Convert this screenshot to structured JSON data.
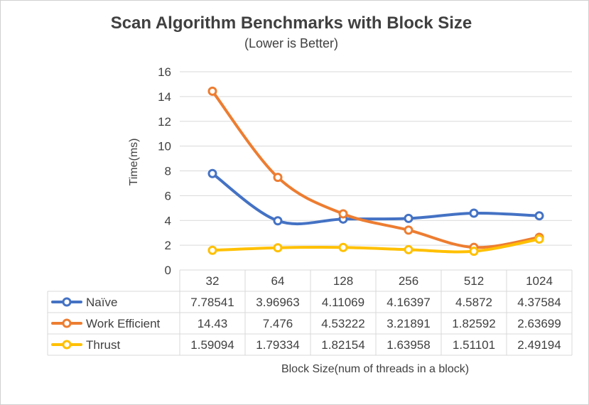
{
  "chart_data": {
    "type": "line",
    "title": "Scan Algorithm Benchmarks with Block Size",
    "subtitle": "(Lower is Better)",
    "ylabel": "Time(ms)",
    "xlabel": "Block Size(num of threads in a block)",
    "ylim": [
      0,
      16
    ],
    "yticks": [
      "0",
      "2",
      "4",
      "6",
      "8",
      "10",
      "12",
      "14",
      "16"
    ],
    "grid": true,
    "legend": "data-table-left",
    "categories": [
      "32",
      "64",
      "128",
      "256",
      "512",
      "1024"
    ],
    "series": [
      {
        "name": "Naïve",
        "color": "#4472C4",
        "values": [
          7.78541,
          3.96963,
          4.11069,
          4.16397,
          4.5872,
          4.37584
        ],
        "labels": [
          "7.78541",
          "3.96963",
          "4.11069",
          "4.16397",
          "4.5872",
          "4.37584"
        ]
      },
      {
        "name": "Work Efficient",
        "color": "#ED7D31",
        "values": [
          14.43,
          7.476,
          4.53222,
          3.21891,
          1.82592,
          2.63699
        ],
        "labels": [
          "14.43",
          "7.476",
          "4.53222",
          "3.21891",
          "1.82592",
          "2.63699"
        ]
      },
      {
        "name": "Thrust",
        "color": "#FFC000",
        "values": [
          1.59094,
          1.79334,
          1.82154,
          1.63958,
          1.51101,
          2.49194
        ],
        "labels": [
          "1.59094",
          "1.79334",
          "1.82154",
          "1.63958",
          "1.51101",
          "2.49194"
        ]
      }
    ]
  }
}
